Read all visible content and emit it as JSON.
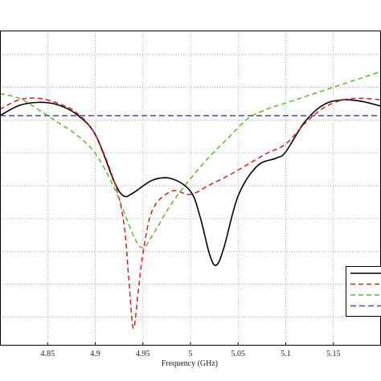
{
  "chart_data": {
    "type": "line",
    "title": "",
    "xlabel": "Frequency (GHz)",
    "ylabel": "",
    "xlim": [
      4.8,
      5.2
    ],
    "ylim": [
      0,
      1
    ],
    "x_ticks": [
      "4.85",
      "4.9",
      "4.95",
      "5",
      "5.05",
      "5.1",
      "5.15"
    ],
    "x_tick_values": [
      4.85,
      4.9,
      4.95,
      5.0,
      5.05,
      5.1,
      5.15
    ],
    "y_gridlines": [
      0.091,
      0.195,
      0.299,
      0.403,
      0.507,
      0.612,
      0.716,
      0.82,
      0.924
    ],
    "grid": true,
    "legend_position": "bottom-right",
    "series": [
      {
        "color": "#000000",
        "dash": "solid",
        "x": [
          4.8,
          4.82,
          4.84,
          4.86,
          4.88,
          4.9,
          4.92,
          4.93,
          4.94,
          4.96,
          4.98,
          5.0,
          5.01,
          5.02,
          5.027,
          5.035,
          5.05,
          5.07,
          5.09,
          5.1,
          5.12,
          5.14,
          5.16,
          5.18,
          5.2
        ],
        "y": [
          0.73,
          0.762,
          0.772,
          0.765,
          0.735,
          0.67,
          0.52,
          0.475,
          0.485,
          0.525,
          0.53,
          0.49,
          0.41,
          0.29,
          0.255,
          0.31,
          0.475,
          0.57,
          0.595,
          0.615,
          0.71,
          0.765,
          0.78,
          0.775,
          0.76
        ]
      },
      {
        "color": "#d62020",
        "dash": "6,4",
        "x": [
          4.8,
          4.82,
          4.84,
          4.86,
          4.88,
          4.9,
          4.92,
          4.93,
          4.935,
          4.94,
          4.945,
          4.95,
          4.96,
          4.98,
          5.0,
          5.02,
          5.04,
          5.06,
          5.08,
          5.1,
          5.12,
          5.14,
          5.16,
          5.18,
          5.2
        ],
        "y": [
          0.75,
          0.78,
          0.785,
          0.77,
          0.74,
          0.67,
          0.52,
          0.39,
          0.22,
          0.055,
          0.17,
          0.29,
          0.43,
          0.49,
          0.48,
          0.51,
          0.54,
          0.575,
          0.61,
          0.64,
          0.705,
          0.755,
          0.78,
          0.785,
          0.78
        ]
      },
      {
        "color": "#5fb832",
        "dash": "6,4",
        "x": [
          4.8,
          4.82,
          4.84,
          4.86,
          4.88,
          4.9,
          4.92,
          4.94,
          4.95,
          4.96,
          4.98,
          5.0,
          5.02,
          5.04,
          5.06,
          5.08,
          5.1,
          5.12,
          5.14,
          5.16,
          5.18,
          5.2
        ],
        "y": [
          0.8,
          0.785,
          0.75,
          0.71,
          0.67,
          0.61,
          0.5,
          0.35,
          0.31,
          0.35,
          0.45,
          0.53,
          0.6,
          0.66,
          0.72,
          0.75,
          0.77,
          0.79,
          0.81,
          0.83,
          0.85,
          0.87
        ]
      },
      {
        "color": "#4a4aa8",
        "dash": "7,4",
        "x": [
          4.8,
          5.2
        ],
        "y": [
          0.73,
          0.73
        ]
      }
    ]
  }
}
